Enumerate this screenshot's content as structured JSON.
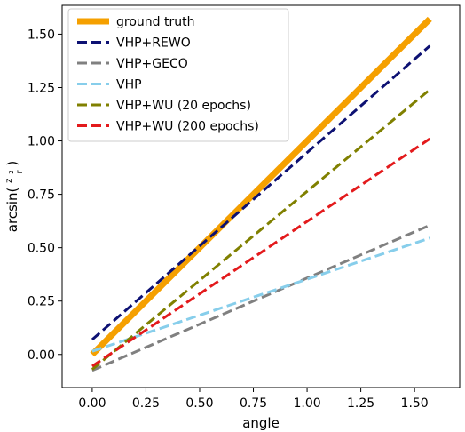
{
  "chart_data": {
    "type": "line",
    "xlabel": "angle",
    "ylabel_prefix": "arcsin(",
    "ylabel_frac_num": "z",
    "ylabel_frac_num_sub": "2",
    "ylabel_frac_den": "r",
    "ylabel_suffix": ")",
    "xlim": [
      -0.14,
      1.71
    ],
    "ylim": [
      -0.155,
      1.635
    ],
    "xticks": [
      0.0,
      0.25,
      0.5,
      0.75,
      1.0,
      1.25,
      1.5
    ],
    "xtick_labels": [
      "0.00",
      "0.25",
      "0.50",
      "0.75",
      "1.00",
      "1.25",
      "1.50"
    ],
    "yticks": [
      0.0,
      0.25,
      0.5,
      0.75,
      1.0,
      1.25,
      1.5
    ],
    "ytick_labels": [
      "0.00",
      "0.25",
      "0.50",
      "0.75",
      "1.00",
      "1.25",
      "1.50"
    ],
    "grid": false,
    "legend_position": "top-left",
    "series": [
      {
        "name": "ground truth",
        "color": "#f5a000",
        "style": "solid",
        "x": [
          0.0,
          1.5708
        ],
        "y": [
          0.0,
          1.5708
        ]
      },
      {
        "name": "VHP+REWO",
        "color": "#0d1173",
        "style": "dashed",
        "x": [
          0.0,
          1.5708
        ],
        "y": [
          0.07,
          1.445
        ]
      },
      {
        "name": "VHP+GECO",
        "color": "#808080",
        "style": "dashed",
        "x": [
          0.0,
          1.5708
        ],
        "y": [
          -0.075,
          0.605
        ]
      },
      {
        "name": "VHP",
        "color": "#87ceeb",
        "style": "dashed",
        "x": [
          0.0,
          1.5708
        ],
        "y": [
          0.015,
          0.545
        ]
      },
      {
        "name": "VHP+WU (20 epochs)",
        "color": "#808000",
        "style": "dashed",
        "x": [
          0.0,
          1.5708
        ],
        "y": [
          -0.07,
          1.24
        ]
      },
      {
        "name": "VHP+WU (200 epochs)",
        "color": "#e31a1c",
        "style": "dashed",
        "x": [
          0.0,
          1.5708
        ],
        "y": [
          -0.055,
          1.01
        ]
      }
    ]
  }
}
